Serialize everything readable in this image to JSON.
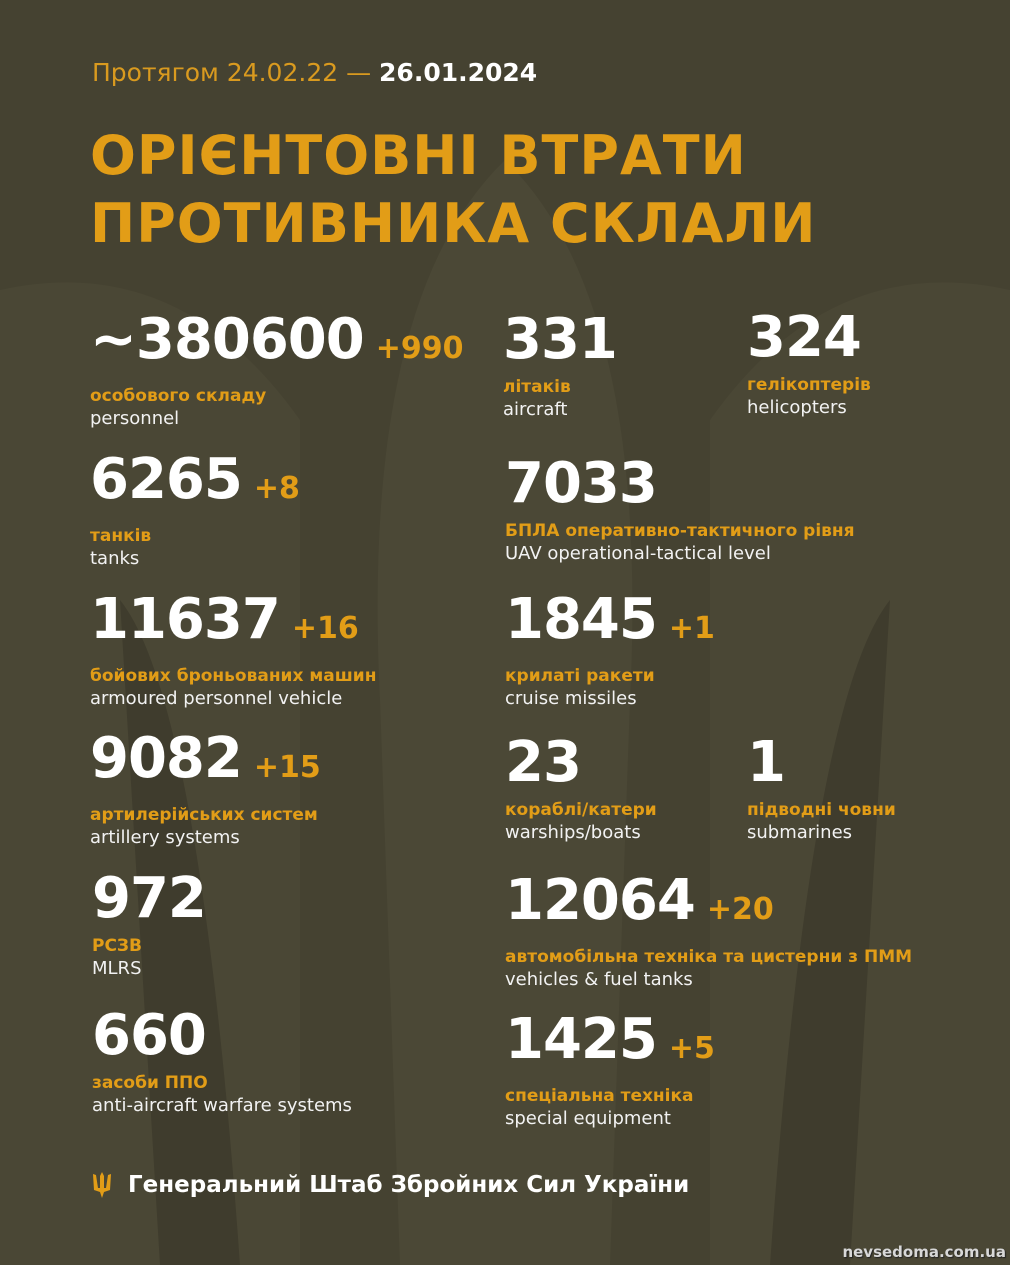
{
  "colors": {
    "background": "#454231",
    "accent": "#e29d17",
    "text": "#ffffff"
  },
  "header": {
    "period_prefix": "Протягом 24.02.22 —",
    "period_date": "26.01.2024",
    "title_line1": "ОРІЄНТОВНІ ВТРАТИ",
    "title_line2": "ПРОТИВНИКА СКЛАЛИ"
  },
  "stats": [
    {
      "value": "~380600",
      "delta": "+990",
      "label_uk": "особового складу",
      "label_en": "personnel"
    },
    {
      "value": "331",
      "delta": "",
      "label_uk": "літаків",
      "label_en": "aircraft"
    },
    {
      "value": "324",
      "delta": "",
      "label_uk": "гелікоптерів",
      "label_en": "helicopters"
    },
    {
      "value": "6265",
      "delta": "+8",
      "label_uk": "танків",
      "label_en": "tanks"
    },
    {
      "value": "7033",
      "delta": "",
      "label_uk": "БПЛА оперативно-тактичного рівня",
      "label_en": "UAV operational-tactical level"
    },
    {
      "value": "11637",
      "delta": "+16",
      "label_uk": "бойових броньованих машин",
      "label_en": "armoured personnel vehicle"
    },
    {
      "value": "1845",
      "delta": "+1",
      "label_uk": "крилаті ракети",
      "label_en": "cruise missiles"
    },
    {
      "value": "9082",
      "delta": "+15",
      "label_uk": "артилерійських систем",
      "label_en": "artillery systems"
    },
    {
      "value": "23",
      "delta": "",
      "label_uk": "кораблі/катери",
      "label_en": "warships/boats"
    },
    {
      "value": "1",
      "delta": "",
      "label_uk": "підводні човни",
      "label_en": "submarines"
    },
    {
      "value": "972",
      "delta": "",
      "label_uk": "РСЗВ",
      "label_en": "MLRS"
    },
    {
      "value": "12064",
      "delta": "+20",
      "label_uk": "автомобільна техніка та цистерни з ПММ",
      "label_en": "vehicles & fuel tanks"
    },
    {
      "value": "660",
      "delta": "",
      "label_uk": "засоби ППО",
      "label_en": "anti-aircraft warfare systems"
    },
    {
      "value": "1425",
      "delta": "+5",
      "label_uk": "спеціальна техніка",
      "label_en": "special equipment"
    }
  ],
  "footer": {
    "icon": "trident-icon",
    "text": "Генеральний Штаб Збройних Сил України"
  },
  "watermark": "nevsedoma.com.ua"
}
